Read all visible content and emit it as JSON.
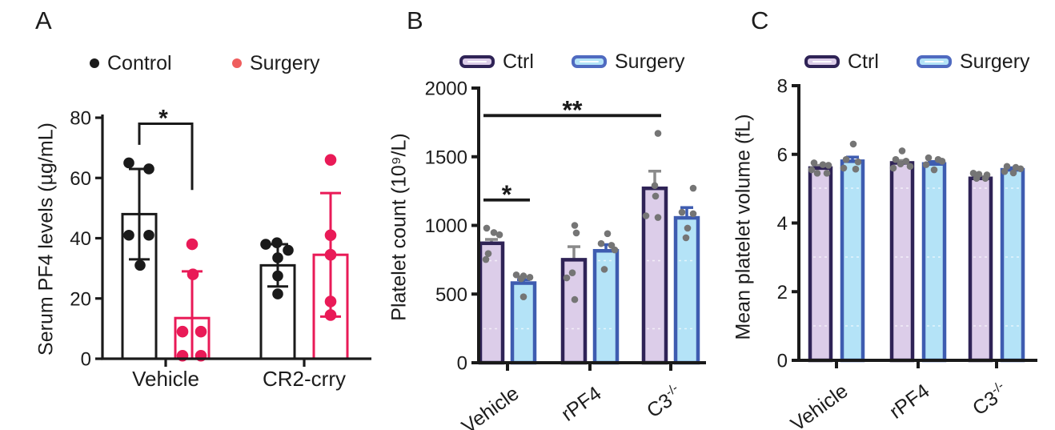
{
  "panels": [
    {
      "letter_ref": "A",
      "legend": [
        {
          "label": "Control",
          "marker": "dot",
          "color": "#1a1a1a"
        },
        {
          "label": "Surgery",
          "marker": "dot",
          "color": "#ef5e5e"
        }
      ]
    },
    {
      "letter_ref": "B",
      "legend": [
        {
          "label": "Ctrl",
          "marker": "bar",
          "fill": "#dccde9",
          "border": "#2f2356"
        },
        {
          "label": "Surgery",
          "marker": "bar",
          "fill": "#b4e3f7",
          "border": "#4f6ac0"
        }
      ]
    },
    {
      "letter_ref": "C",
      "legend": [
        {
          "label": "Ctrl",
          "marker": "bar",
          "fill": "#dccde9",
          "border": "#2f2356"
        },
        {
          "label": "Surgery",
          "marker": "bar",
          "fill": "#b4e3f7",
          "border": "#4f6ac0"
        }
      ]
    }
  ],
  "chart_data": [
    {
      "type": "bar",
      "panel_letter": "A",
      "ylabel": "Serum PF4 levels (µg/mL)",
      "categories": [
        "Vehicle",
        "CR2-crry"
      ],
      "ylim": [
        0,
        80
      ],
      "yticks": [
        0,
        20,
        40,
        60,
        80
      ],
      "grid": false,
      "legend_position": "top",
      "series": [
        {
          "name": "Control",
          "bar_fill": "#ffffff",
          "bar_stroke": "#1a1a1a",
          "err_color": "#1a1a1a",
          "point_color": "#1a1a1a",
          "means": [
            48,
            31
          ],
          "sd": [
            15,
            7
          ],
          "points": [
            [
              [
                65,
                -13
              ],
              [
                63,
                12
              ],
              [
                41,
                -13
              ],
              [
                41,
                12
              ],
              [
                31,
                1
              ]
            ],
            [
              [
                38,
                -15
              ],
              [
                38.5,
                -1
              ],
              [
                36,
                13
              ],
              [
                33.5,
                0
              ],
              [
                27.5,
                0
              ],
              [
                21.5,
                0
              ]
            ]
          ]
        },
        {
          "name": "Surgery",
          "bar_fill": "#ffffff",
          "bar_stroke": "#e91a57",
          "err_color": "#e91a57",
          "point_color": "#e91a57",
          "means": [
            13.5,
            34.5
          ],
          "sd": [
            15.5,
            20.5
          ],
          "points": [
            [
              [
                38,
                0
              ],
              [
                28,
                1
              ],
              [
                9,
                -12
              ],
              [
                9,
                11
              ],
              [
                1,
                -12
              ],
              [
                1,
                11
              ]
            ],
            [
              [
                66,
                0
              ],
              [
                41,
                0
              ],
              [
                34.5,
                0
              ],
              [
                19,
                0
              ],
              [
                14.5,
                0
              ]
            ]
          ]
        }
      ],
      "annotations": [
        {
          "kind": "step",
          "label": "*",
          "from": {
            "group": 0,
            "series": 0
          },
          "to": {
            "group": 0,
            "series": 1
          },
          "y_top": 78,
          "y_from_end": 71,
          "y_to_end": 56
        }
      ]
    },
    {
      "type": "bar",
      "panel_letter": "B",
      "ylabel": "Platelet count (10⁹/L)",
      "categories": [
        "Vehicle",
        "rPF4",
        {
          "text": "C3",
          "sup": "-/-"
        }
      ],
      "ylim": [
        0,
        2000
      ],
      "yticks": [
        0,
        500,
        1000,
        1500,
        2000
      ],
      "grid": false,
      "legend_position": "top",
      "series": [
        {
          "name": "Ctrl",
          "bar_fill": "#dccde9",
          "bar_stroke": "#2f2356",
          "err_color": "#8a8a8a",
          "point_color": "#757575",
          "means": [
            870,
            750,
            1270
          ],
          "sd": [
            28,
            95,
            125
          ],
          "points": [
            [
              [
                980,
                -6
              ],
              [
                948,
                3
              ],
              [
                932,
                10
              ],
              [
                795,
                -4
              ],
              [
                752,
                -7
              ]
            ],
            [
              [
                1000,
                1
              ],
              [
                945,
                3
              ],
              [
                655,
                -2
              ],
              [
                618,
                -9
              ],
              [
                460,
                1
              ]
            ],
            [
              [
                1670,
                4
              ],
              [
                1290,
                0
              ],
              [
                1213,
                1
              ],
              [
                1070,
                -11
              ],
              [
                1058,
                4
              ]
            ]
          ]
        },
        {
          "name": "Surgery",
          "bar_fill": "#b4e3f7",
          "bar_stroke": "#3e5cb0",
          "err_color": "#3e5cb0",
          "point_color": "#757575",
          "means": [
            580,
            815,
            1055
          ],
          "sd": [
            25,
            45,
            75
          ],
          "points": [
            [
              [
                640,
                -9
              ],
              [
                632,
                0
              ],
              [
                622,
                8
              ],
              [
                612,
                -3
              ],
              [
                480,
                0
              ]
            ],
            [
              [
                940,
                2
              ],
              [
                868,
                -6
              ],
              [
                855,
                7
              ],
              [
                822,
                11
              ],
              [
                680,
                -2
              ]
            ],
            [
              [
                1271,
                8
              ],
              [
                1096,
                -6
              ],
              [
                1085,
                8
              ],
              [
                980,
                1
              ],
              [
                910,
                -1
              ]
            ]
          ]
        }
      ],
      "annotations": [
        {
          "kind": "line",
          "label": "*",
          "from": {
            "group": 0,
            "series": 0,
            "dx": -10
          },
          "to": {
            "group": 0,
            "series": 1,
            "dx": 8
          },
          "y": 1185
        },
        {
          "kind": "line",
          "label": "**",
          "from": {
            "group": 0,
            "series": 0,
            "dx": -10
          },
          "to": {
            "group": 2,
            "series": 0,
            "dx": 8
          },
          "y": 1800
        }
      ]
    },
    {
      "type": "bar",
      "panel_letter": "C",
      "ylabel": "Mean platelet volume (fL)",
      "categories": [
        "Vehicle",
        "rPF4",
        {
          "text": "C3",
          "sup": "-/-"
        }
      ],
      "ylim": [
        0,
        8
      ],
      "yticks": [
        0,
        2,
        4,
        6,
        8
      ],
      "grid": false,
      "legend_position": "top",
      "series": [
        {
          "name": "Ctrl",
          "bar_fill": "#dccde9",
          "bar_stroke": "#2f2356",
          "err_color": "#8a8a8a",
          "point_color": "#757575",
          "means": [
            5.6,
            5.75,
            5.3
          ],
          "sd": [
            0.08,
            0.07,
            0.05
          ],
          "points": [
            [
              [
                5.75,
                -8
              ],
              [
                5.7,
                3
              ],
              [
                5.68,
                10
              ],
              [
                5.55,
                -11
              ],
              [
                5.45,
                -4
              ],
              [
                5.45,
                8
              ]
            ],
            [
              [
                6.1,
                0
              ],
              [
                5.85,
                -8
              ],
              [
                5.8,
                5
              ],
              [
                5.72,
                -2
              ],
              [
                5.65,
                10
              ],
              [
                5.6,
                -11
              ]
            ],
            [
              [
                5.45,
                -9
              ],
              [
                5.42,
                -2
              ],
              [
                5.4,
                8
              ],
              [
                5.3,
                -5
              ],
              [
                5.3,
                6
              ]
            ]
          ]
        },
        {
          "name": "Surgery",
          "bar_fill": "#b4e3f7",
          "bar_stroke": "#3e5cb0",
          "err_color": "#3e5cb0",
          "point_color": "#757575",
          "means": [
            5.8,
            5.72,
            5.55
          ],
          "sd": [
            0.12,
            0.07,
            0.06
          ],
          "points": [
            [
              [
                6.3,
                1
              ],
              [
                5.85,
                -8
              ],
              [
                5.78,
                7
              ],
              [
                5.6,
                -11
              ],
              [
                5.57,
                4
              ]
            ],
            [
              [
                5.9,
                -7
              ],
              [
                5.85,
                5
              ],
              [
                5.8,
                10
              ],
              [
                5.7,
                -10
              ],
              [
                5.55,
                0
              ]
            ],
            [
              [
                5.65,
                -7
              ],
              [
                5.62,
                4
              ],
              [
                5.58,
                10
              ],
              [
                5.5,
                -10
              ],
              [
                5.46,
                1
              ]
            ]
          ]
        }
      ],
      "annotations": []
    }
  ]
}
